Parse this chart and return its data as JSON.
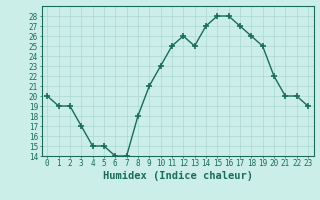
{
  "x": [
    0,
    1,
    2,
    3,
    4,
    5,
    6,
    7,
    8,
    9,
    10,
    11,
    12,
    13,
    14,
    15,
    16,
    17,
    18,
    19,
    20,
    21,
    22,
    23
  ],
  "y": [
    20,
    19,
    19,
    17,
    15,
    15,
    14,
    14,
    18,
    21,
    23,
    25,
    26,
    25,
    27,
    28,
    28,
    27,
    26,
    25,
    22,
    20,
    20,
    19
  ],
  "line_color": "#1a6b5a",
  "marker": "+",
  "marker_size": 4,
  "marker_lw": 1.2,
  "bg_color": "#cceee8",
  "grid_color": "#aad8d0",
  "xlabel": "Humidex (Indice chaleur)",
  "ylim": [
    14,
    29
  ],
  "xlim": [
    -0.5,
    23.5
  ],
  "yticks": [
    14,
    15,
    16,
    17,
    18,
    19,
    20,
    21,
    22,
    23,
    24,
    25,
    26,
    27,
    28
  ],
  "xticks": [
    0,
    1,
    2,
    3,
    4,
    5,
    6,
    7,
    8,
    9,
    10,
    11,
    12,
    13,
    14,
    15,
    16,
    17,
    18,
    19,
    20,
    21,
    22,
    23
  ],
  "tick_fontsize": 5.5,
  "xlabel_fontsize": 7.5,
  "tick_color": "#1a6b5a",
  "axis_color": "#1a6b5a",
  "line_width": 1.0
}
